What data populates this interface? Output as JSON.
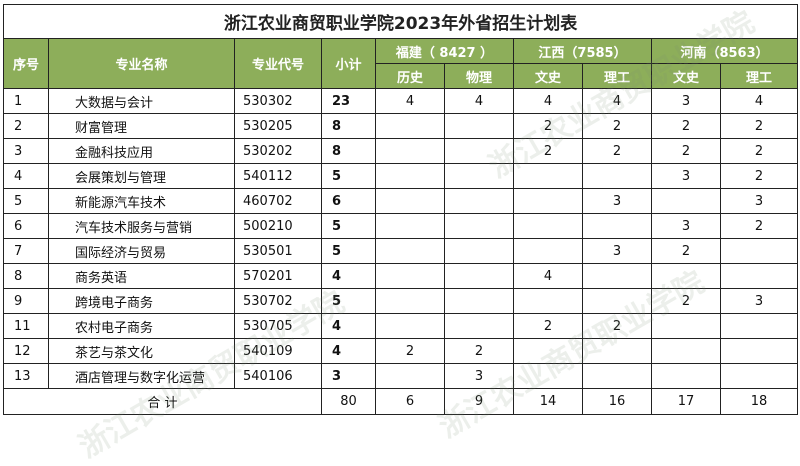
{
  "title": "浙江农业商贸职业学院2023年外省招生计划表",
  "headers": {
    "seq": "序号",
    "name": "专业名称",
    "code": "专业代号",
    "subtotal": "小计",
    "provinces": [
      {
        "label": "福建（ 8427 ）",
        "subs": [
          "历史",
          "物理"
        ]
      },
      {
        "label": "江西（7585）",
        "subs": [
          "文史",
          "理工"
        ]
      },
      {
        "label": "河南（8563）",
        "subs": [
          "文史",
          "理工"
        ]
      }
    ]
  },
  "rows": [
    {
      "seq": "1",
      "name": "大数据与会计",
      "code": "530302",
      "subtotal": "23",
      "vals": [
        "4",
        "4",
        "4",
        "4",
        "3",
        "4"
      ]
    },
    {
      "seq": "2",
      "name": "财富管理",
      "code": "530205",
      "subtotal": "8",
      "vals": [
        "",
        "",
        "2",
        "2",
        "2",
        "2"
      ]
    },
    {
      "seq": "3",
      "name": "金融科技应用",
      "code": "530202",
      "subtotal": "8",
      "vals": [
        "",
        "",
        "2",
        "2",
        "2",
        "2"
      ]
    },
    {
      "seq": "4",
      "name": "会展策划与管理",
      "code": "540112",
      "subtotal": "5",
      "vals": [
        "",
        "",
        "",
        "",
        "3",
        "2"
      ]
    },
    {
      "seq": "5",
      "name": "新能源汽车技术",
      "code": "460702",
      "subtotal": "6",
      "vals": [
        "",
        "",
        "",
        "3",
        "",
        "3"
      ]
    },
    {
      "seq": "6",
      "name": "汽车技术服务与营销",
      "code": "500210",
      "subtotal": "5",
      "vals": [
        "",
        "",
        "",
        "",
        "3",
        "2"
      ]
    },
    {
      "seq": "7",
      "name": "国际经济与贸易",
      "code": "530501",
      "subtotal": "5",
      "vals": [
        "",
        "",
        "",
        "3",
        "2",
        ""
      ]
    },
    {
      "seq": "8",
      "name": "商务英语",
      "code": "570201",
      "subtotal": "4",
      "vals": [
        "",
        "",
        "4",
        "",
        "",
        ""
      ]
    },
    {
      "seq": "9",
      "name": "跨境电子商务",
      "code": "530702",
      "subtotal": "5",
      "vals": [
        "",
        "",
        "",
        "",
        "2",
        "3"
      ]
    },
    {
      "seq": "11",
      "name": "农村电子商务",
      "code": "530705",
      "subtotal": "4",
      "vals": [
        "",
        "",
        "2",
        "2",
        "",
        ""
      ]
    },
    {
      "seq": "12",
      "name": "茶艺与茶文化",
      "code": "540109",
      "subtotal": "4",
      "vals": [
        "2",
        "2",
        "",
        "",
        "",
        ""
      ]
    },
    {
      "seq": "13",
      "name": "酒店管理与数字化运营",
      "code": "540106",
      "subtotal": "3",
      "vals": [
        "",
        "3",
        "",
        "",
        "",
        ""
      ]
    }
  ],
  "total": {
    "label": "合 计",
    "subtotal": "80",
    "vals": [
      "6",
      "9",
      "14",
      "16",
      "17",
      "18"
    ]
  },
  "colors": {
    "header_bg": "#8dae5a",
    "header_text": "#ffffff",
    "border": "#222222"
  }
}
